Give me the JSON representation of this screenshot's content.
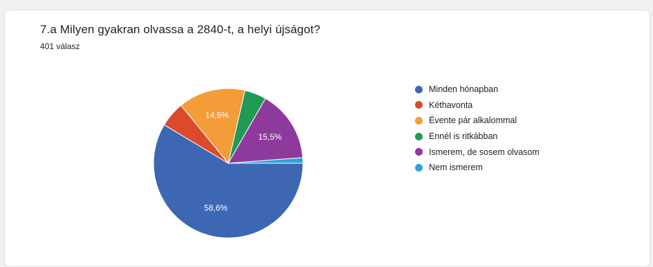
{
  "title": "7.a Milyen gyakran olvassa a 2840-t, a helyi újságot?",
  "response_count": "401 válasz",
  "chart_data": {
    "type": "pie",
    "title": "7.a Milyen gyakran olvassa a 2840-t, a helyi újságot?",
    "subtitle": "401 válasz",
    "legend_position": "right",
    "slices": [
      {
        "label": "Minden hónapban",
        "value": 58.6,
        "color": "#3d67b3",
        "label_text": "58,6%"
      },
      {
        "label": "Kéthavonta",
        "value": 5.5,
        "color": "#dc4a2c",
        "label_text": ""
      },
      {
        "label": "Évente pár alkalommal",
        "value": 14.5,
        "color": "#f39c38",
        "label_text": "14,5%"
      },
      {
        "label": "Ennél is ritkábban",
        "value": 4.7,
        "color": "#219a55",
        "label_text": ""
      },
      {
        "label": "Ismerem, de sosem olvasom",
        "value": 15.5,
        "color": "#8e3a9d",
        "label_text": "15,5%"
      },
      {
        "label": "Nem ismerem",
        "value": 1.2,
        "color": "#2fa4d9",
        "label_text": ""
      }
    ]
  }
}
